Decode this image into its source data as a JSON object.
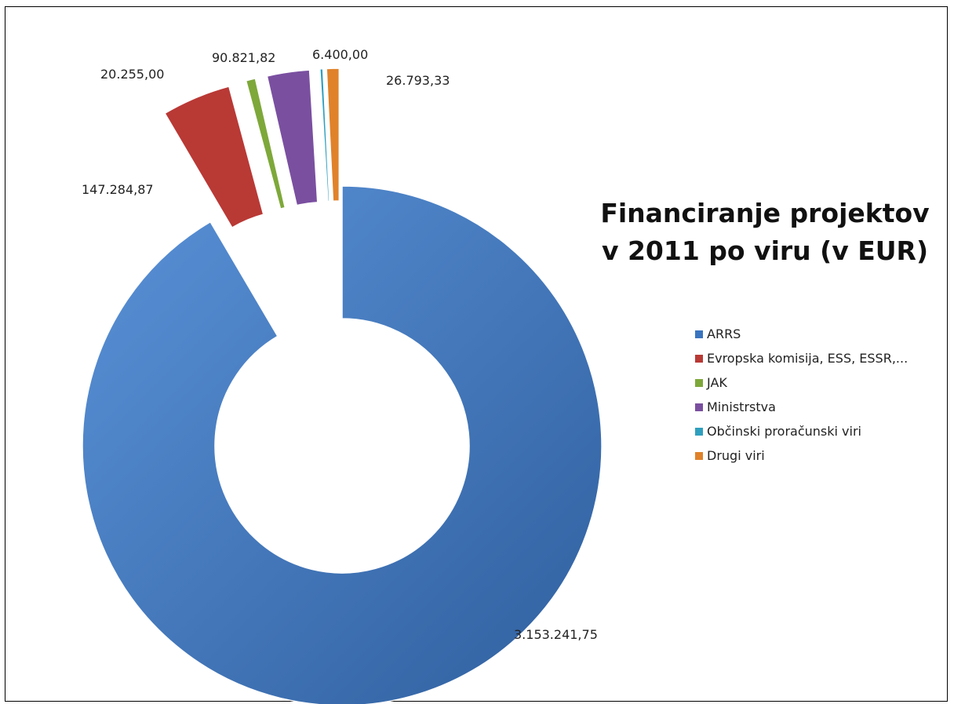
{
  "chart_data": {
    "type": "pie",
    "title_lines": [
      "Financiranje projektov",
      "v 2011 po viru (v EUR)"
    ],
    "series": [
      {
        "name": "ARRS",
        "value": 3153241.75,
        "label": "3.153.241,75",
        "color": "#3a74bf"
      },
      {
        "name": "Evropska komisija, ESS, ESSR,...",
        "value": 147284.87,
        "label": "147.284,87",
        "color": "#b93935"
      },
      {
        "name": "JAK",
        "value": 20255.0,
        "label": "20.255,00",
        "color": "#7ea83a"
      },
      {
        "name": "Ministrstva",
        "value": 90821.82,
        "label": "90.821,82",
        "color": "#7a4fa0"
      },
      {
        "name": "Občinski proračunski viri",
        "value": 6400.0,
        "label": "6.400,00",
        "color": "#2f9fbf"
      },
      {
        "name": "Drugi viri",
        "value": 26793.33,
        "label": "26.793,33",
        "color": "#e0822a"
      }
    ],
    "legend_position": "right"
  }
}
